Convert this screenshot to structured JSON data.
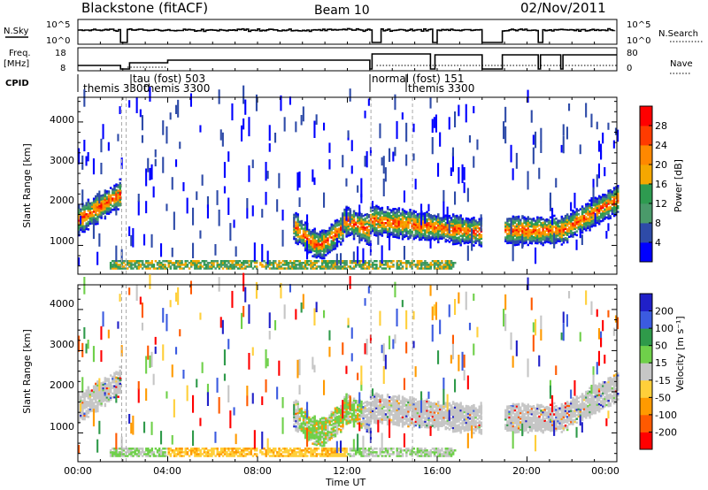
{
  "header": {
    "title": "Blackstone (fitACF)",
    "beam": "Beam 10",
    "date": "02/Nov/2011"
  },
  "colors": {
    "power": [
      "#0000ff",
      "#2e4ba8",
      "#4a9a6a",
      "#2e9b50",
      "#f5a700",
      "#ff8800",
      "#ff3b00",
      "#ff0000"
    ],
    "velocity": [
      "#2020c8",
      "#3b5be0",
      "#2f9a4a",
      "#6fd04a",
      "#c6c6c6",
      "#ffcf3a",
      "#ff9a00",
      "#ff5a00",
      "#ff0000"
    ]
  },
  "chart_data": [
    {
      "type": "line",
      "panel": "noise",
      "ylabel": "N.Sky",
      "ylabel_right": "N.Search",
      "yticks_left": [
        "10^5",
        "10^0"
      ],
      "yticks_right": [
        "10^5",
        "10^0"
      ]
    },
    {
      "type": "line",
      "panel": "frequency",
      "ylabel": "Freq.",
      "yunit": "[MHz]",
      "yticks_left": [
        "18",
        "8"
      ],
      "ylabel_right": "Nave",
      "yticks_right": [
        "80",
        "0"
      ]
    },
    {
      "type": "table",
      "panel": "cpid",
      "ylabel": "CPID",
      "segments": [
        {
          "label": "themis  3300"
        },
        {
          "label": "tau (fost)  503"
        },
        {
          "label": "themis 3300"
        },
        {
          "label": "normal (fost)  151"
        },
        {
          "label": "themis  3300"
        }
      ]
    },
    {
      "type": "heatmap",
      "panel": "power",
      "xlabel": "",
      "ylabel": "Slant Range [km]",
      "ylim": [
        300,
        4600
      ],
      "yticks": [
        "1000",
        "2000",
        "3000",
        "4000"
      ],
      "colorbar_label": "Power [dB]",
      "colorbar_ticks": [
        "4",
        "8",
        "12",
        "16",
        "20",
        "24",
        "28"
      ],
      "colorbar_range": [
        0,
        32
      ]
    },
    {
      "type": "heatmap",
      "panel": "velocity",
      "xlabel": "Time UT",
      "ylabel": "Slant Range [km]",
      "ylim": [
        300,
        4600
      ],
      "yticks": [
        "1000",
        "2000",
        "3000",
        "4000"
      ],
      "colorbar_label": "Velocity [m s⁻¹]",
      "colorbar_ticks": [
        "200",
        "100",
        "50",
        "15",
        "-15",
        "-50",
        "-100",
        "-200"
      ],
      "xticks": [
        "00:00",
        "04:00",
        "08:00",
        "12:00",
        "16:00",
        "20:00",
        "00:00"
      ],
      "xlim_hours": [
        0,
        24
      ]
    }
  ]
}
